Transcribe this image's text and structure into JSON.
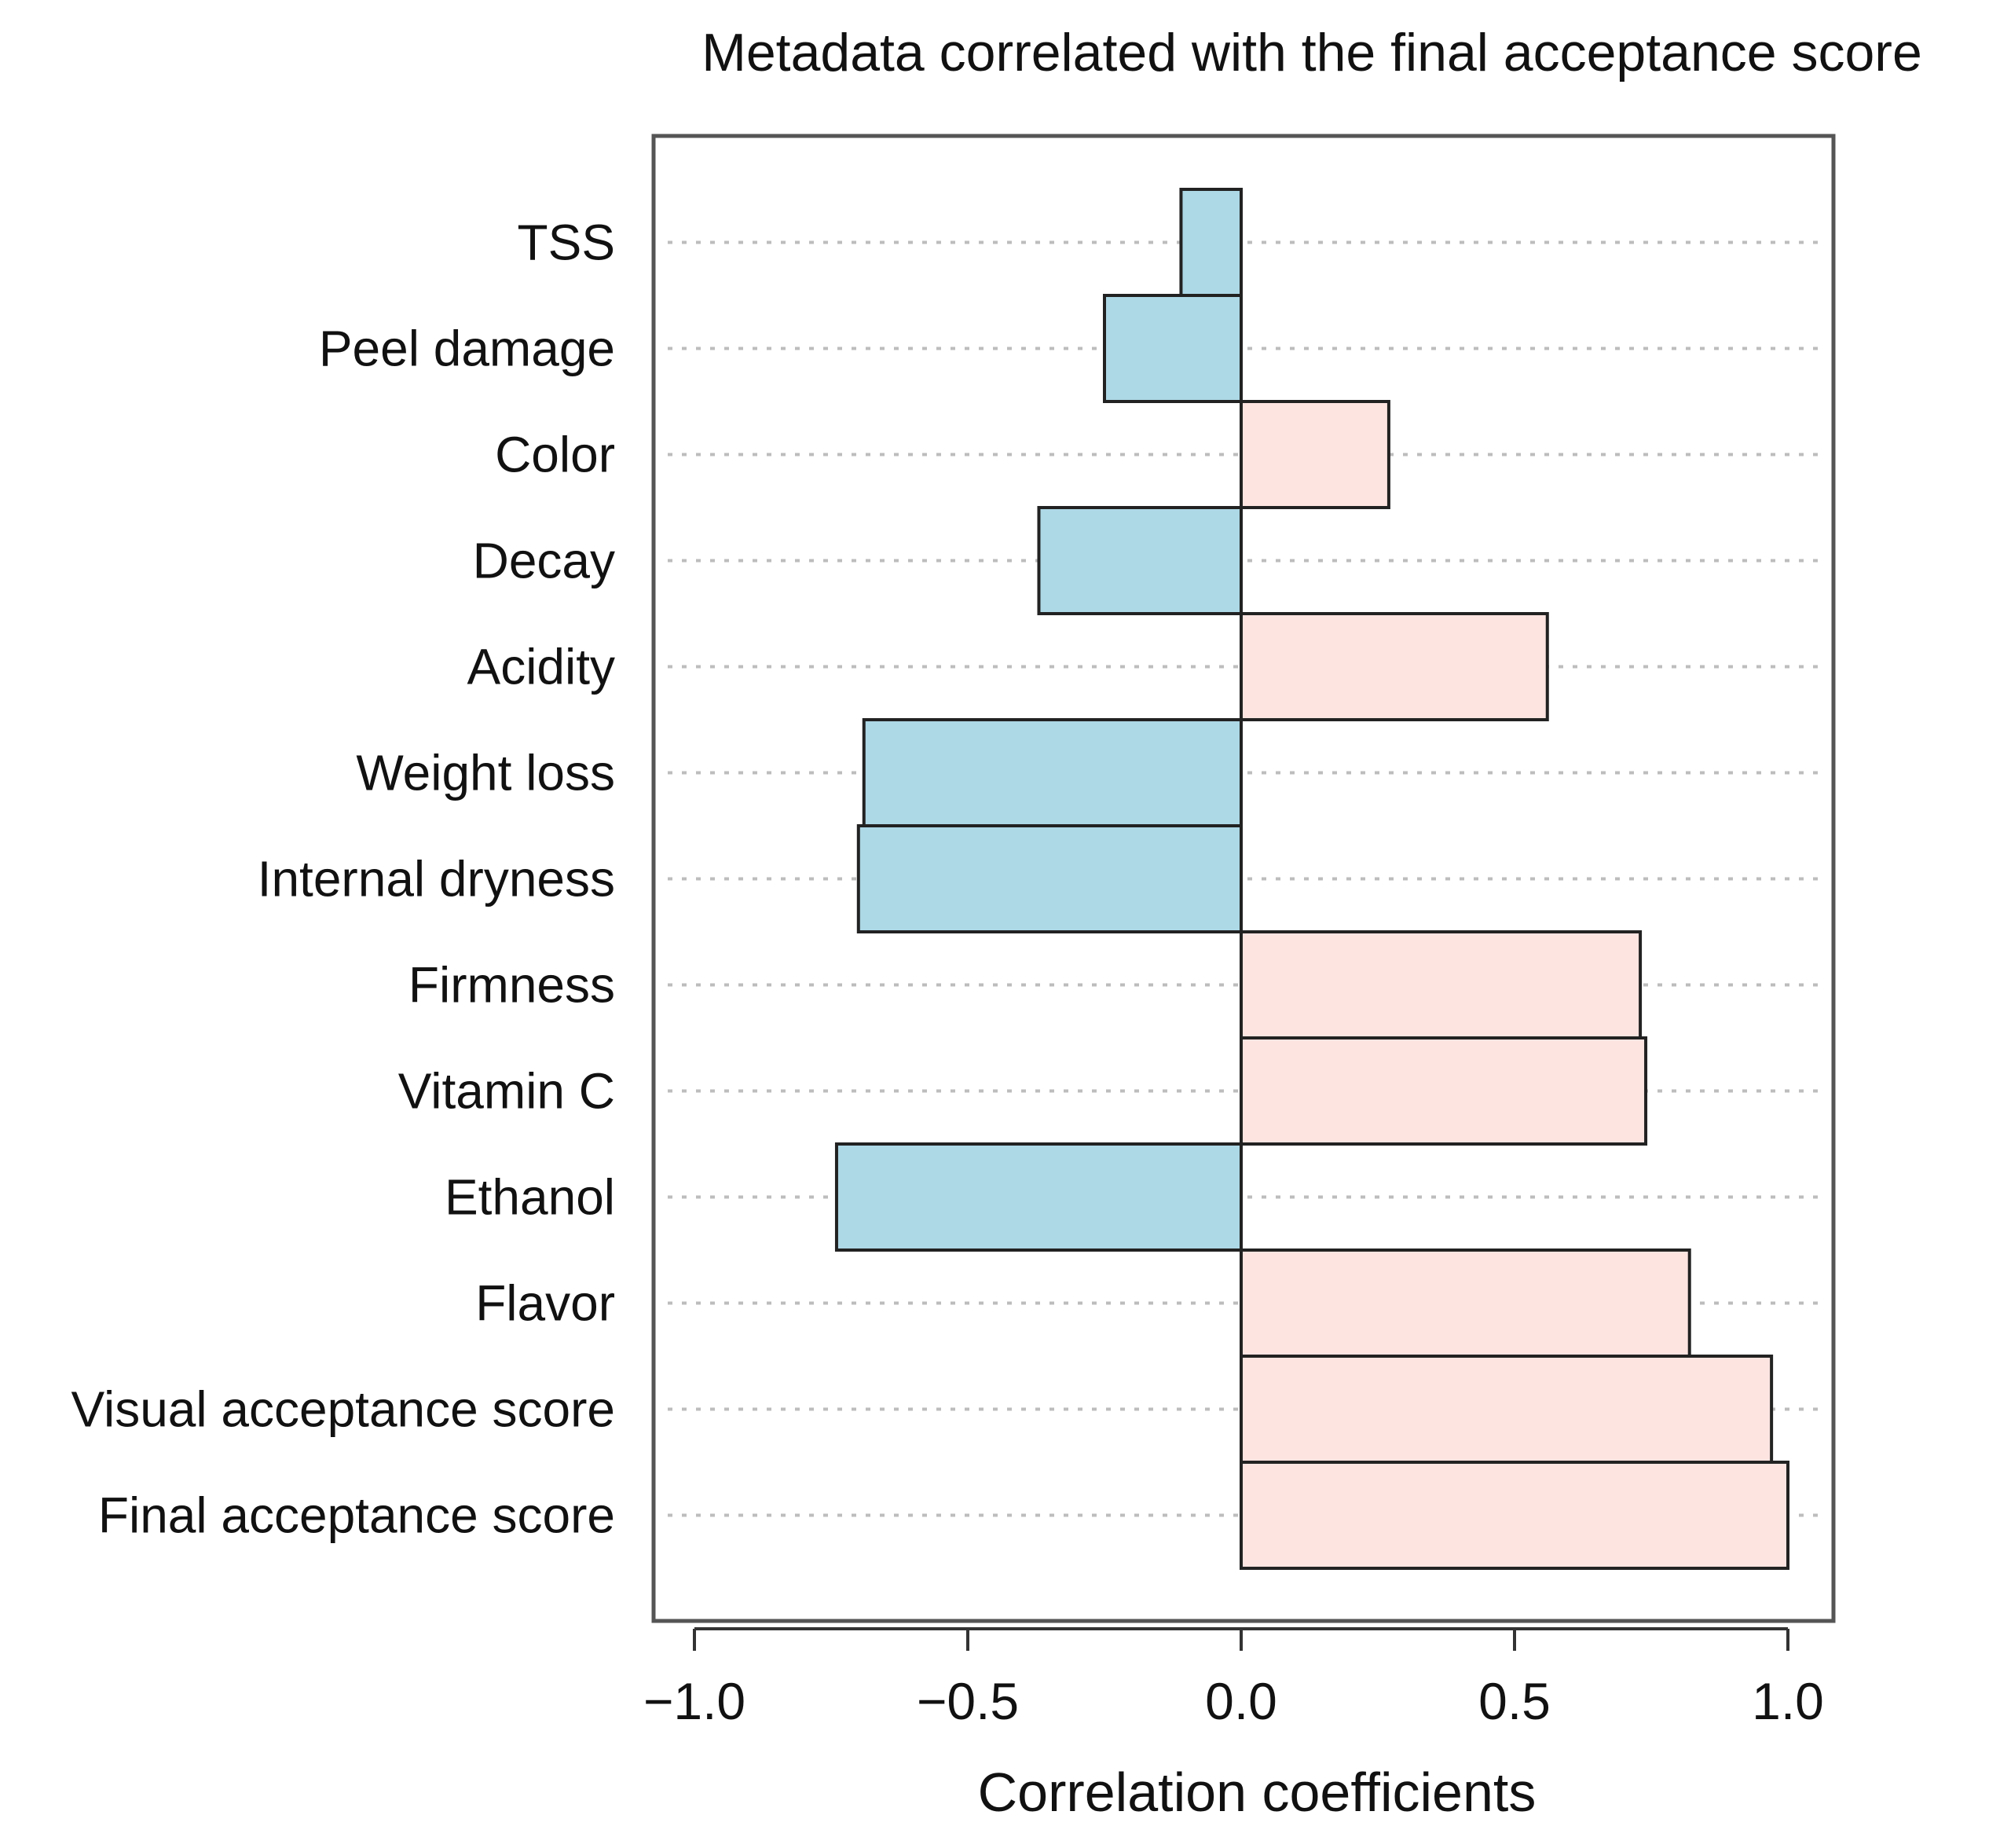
{
  "chart_data": {
    "type": "bar",
    "orientation": "horizontal",
    "title": "Metadata correlated with the final acceptance score",
    "xlabel": "Correlation coefficients",
    "ylabel": "",
    "xlim": [
      -1.08,
      1.08
    ],
    "xticks": [
      -1.0,
      -0.5,
      0.0,
      0.5,
      1.0
    ],
    "xtick_labels": [
      "−1.0",
      "−0.5",
      "0.0",
      "0.5",
      "1.0"
    ],
    "grid": "horizontal dotted",
    "categories": [
      "TSS",
      "Peel damage",
      "Color",
      "Decay",
      "Acidity",
      "Weight loss",
      "Internal dryness",
      "Firmness",
      "Vitamin C",
      "Ethanol",
      "Flavor",
      "Visual acceptance score",
      "Final acceptance score"
    ],
    "values": [
      -0.11,
      -0.25,
      0.27,
      -0.37,
      0.56,
      -0.69,
      -0.7,
      0.73,
      0.74,
      -0.74,
      0.82,
      0.97,
      1.0
    ],
    "colors": {
      "positive": "#fde4e1",
      "negative": "#add8e6",
      "border": "#222222"
    }
  }
}
